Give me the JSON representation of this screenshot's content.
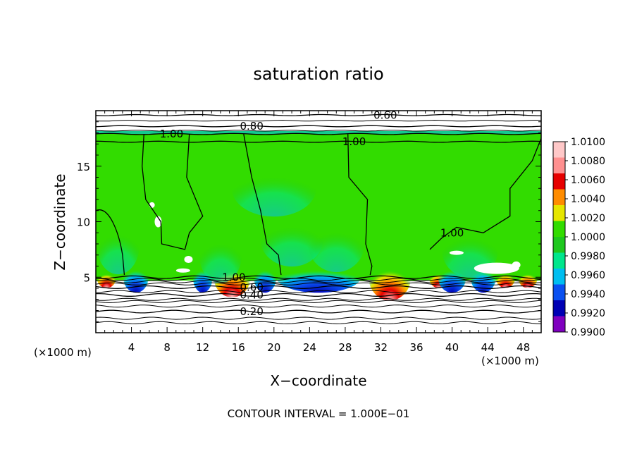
{
  "chart_data": {
    "type": "heatmap",
    "title": "saturation ratio",
    "xlabel": "X−coordinate",
    "ylabel": "Z−coordinate",
    "x_unit_left": "(×1000 m)",
    "x_unit_right": "(×1000 m)",
    "xlim": [
      0,
      50
    ],
    "ylim": [
      0,
      20
    ],
    "x_ticks": [
      4,
      8,
      12,
      16,
      20,
      24,
      28,
      32,
      36,
      40,
      44,
      48
    ],
    "x_tick_labels": [
      "4",
      "8",
      "12",
      "16",
      "20",
      "24",
      "28",
      "32",
      "36",
      "40",
      "44",
      "48"
    ],
    "y_ticks": [
      5,
      10,
      15
    ],
    "y_tick_labels": [
      "5",
      "10",
      "15"
    ],
    "footer": "CONTOUR INTERVAL = 1.000E−01",
    "colorbar": {
      "levels": [
        0.99,
        0.992,
        0.994,
        0.996,
        0.998,
        1.0,
        1.002,
        1.004,
        1.006,
        1.008,
        1.01
      ],
      "labels": [
        "0.9900",
        "0.9920",
        "0.9940",
        "0.9960",
        "0.9980",
        "1.0000",
        "1.0020",
        "1.0040",
        "1.0060",
        "1.0080",
        "1.0100"
      ],
      "colors": [
        "#7f00bf",
        "#0000b4",
        "#0a50f0",
        "#00bef0",
        "#00e68c",
        "#1ec81e",
        "#32dc00",
        "#e6e600",
        "#ff8c00",
        "#e60000",
        "#ff9090",
        "#ffc8c8"
      ]
    },
    "contours": [
      {
        "level": 0.2,
        "label": "0.20",
        "z": 1.9
      },
      {
        "level": 0.4,
        "label": "0.40",
        "z": 3.4
      },
      {
        "level": 0.6,
        "label": "0.60",
        "z": 4.1
      },
      {
        "level": 0.6,
        "label": "0.60",
        "z": 19.6
      },
      {
        "level": 0.8,
        "label": "0.80",
        "z": 18.6
      },
      {
        "level": 1.0,
        "label": "1.00",
        "z": 17.9
      },
      {
        "level": 1.0,
        "label": "1.00",
        "z": 17.2
      },
      {
        "level": 1.0,
        "label": "1.00",
        "z": 9.0
      },
      {
        "level": 1.0,
        "label": "1.00",
        "z": 5.0
      }
    ]
  }
}
